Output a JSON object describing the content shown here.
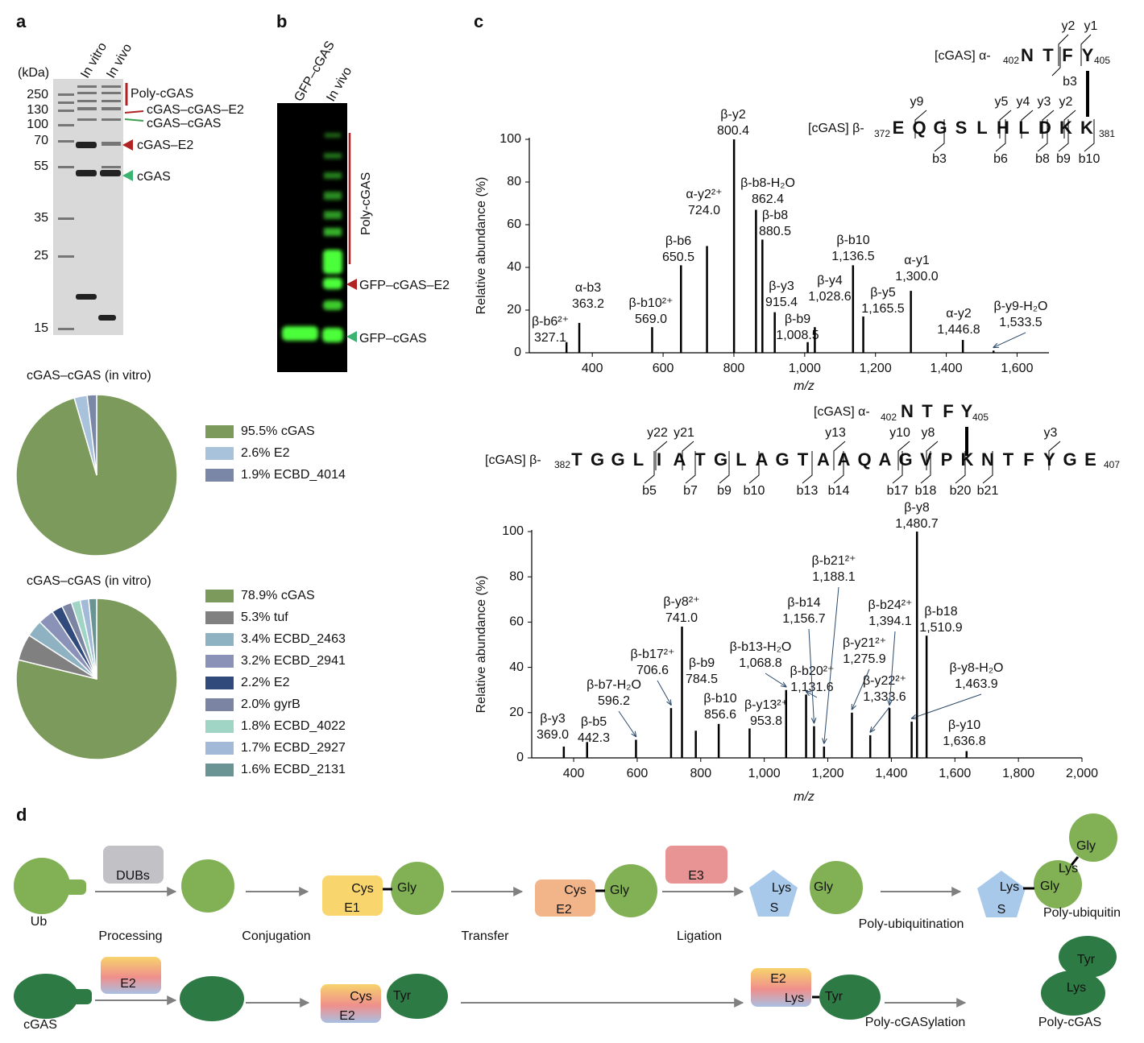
{
  "panel_labels": [
    "a",
    "b",
    "c",
    "d"
  ],
  "gel": {
    "unit": "(kDa)",
    "ladder": [
      250,
      130,
      100,
      70,
      55,
      35,
      25,
      15
    ],
    "lanes": [
      "In vitro",
      "In vivo"
    ],
    "annotations": [
      "Poly-cGAS",
      "cGAS–cGAS–E2",
      "cGAS–cGAS",
      "cGAS–E2",
      "cGAS"
    ]
  },
  "blot": {
    "lanes": [
      "GFP–cGAS",
      "In vivo"
    ],
    "annotations": [
      "Poly-cGAS",
      "GFP–cGAS–E2",
      "GFP–cGAS"
    ]
  },
  "chart_data": [
    {
      "type": "pie",
      "title": "cGAS–cGAS (in vitro)",
      "categories": [
        "cGAS",
        "E2",
        "ECBD_4014"
      ],
      "values": [
        95.5,
        2.6,
        1.9
      ],
      "value_labels": [
        "95.5%",
        "2.6%",
        "1.9%"
      ],
      "colors": [
        "#7b9a5b",
        "#a8c2dc",
        "#7a87a7"
      ]
    },
    {
      "type": "pie",
      "title": "cGAS–cGAS (in vitro)",
      "categories": [
        "cGAS",
        "tuf",
        "ECBD_2463",
        "ECBD_2941",
        "E2",
        "gyrB",
        "ECBD_4022",
        "ECBD_2927",
        "ECBD_2131"
      ],
      "values": [
        78.9,
        5.3,
        3.4,
        3.2,
        2.2,
        2.0,
        1.8,
        1.7,
        1.6
      ],
      "value_labels": [
        "78.9%",
        "5.3%",
        "3.4%",
        "3.2%",
        "2.2%",
        "2.0%",
        "1.8%",
        "1.7%",
        "1.6%"
      ],
      "colors": [
        "#7b9a5b",
        "#808080",
        "#8fb2c3",
        "#8a93b7",
        "#2f4a7b",
        "#7b85a3",
        "#a0d4c4",
        "#a2b9d7",
        "#6a9393"
      ]
    },
    {
      "type": "spectrum",
      "xlabel": "m/z",
      "ylabel": "Relative abundance (%)",
      "color": "#000000",
      "names": [
        "β-b6²⁺",
        "α-b3",
        "β-b6",
        "β-b10²⁺",
        "α-y2²⁺",
        "β-y2",
        "β-b8-H₂O",
        "β-b8",
        "β-y3",
        "β-b9",
        "β-y4",
        "β-b10",
        "β-y5",
        "α-y1",
        "α-y2",
        "β-y9-H₂O"
      ],
      "x": [
        327.1,
        363.2,
        650.5,
        569.0,
        724.0,
        800.4,
        862.4,
        880.5,
        915.4,
        1008.5,
        1028.6,
        1136.5,
        1165.5,
        1300.0,
        1446.8,
        1533.5
      ],
      "x_labels": [
        "327.1",
        "363.2",
        "650.5",
        "569.0",
        "724.0",
        "800.4",
        "862.4",
        "880.5",
        "915.4",
        "1,008.5",
        "1,028.6",
        "1,136.5",
        "1,165.5",
        "1,300.0",
        "1,446.8",
        "1,533.5"
      ],
      "values": [
        5,
        14,
        41,
        12,
        50,
        100,
        67,
        53,
        19,
        5,
        12,
        41,
        17,
        29,
        6,
        1
      ],
      "xlim": [
        222,
        1690
      ],
      "xticks": [
        400,
        600,
        800,
        {
          "value": 1000,
          "label": "1,000"
        },
        {
          "value": 1200,
          "label": "1,200"
        },
        {
          "value": 1400,
          "label": "1,400"
        },
        {
          "value": 1600,
          "label": "1,600"
        }
      ],
      "ylim": [
        0,
        100
      ],
      "yticks": [
        0,
        20,
        40,
        60,
        80,
        100
      ]
    },
    {
      "type": "spectrum",
      "xlabel": "m/z",
      "ylabel": "Relative abundance (%)",
      "color": "#000000",
      "names": [
        "β-y3",
        "β-b5",
        "β-b7-H₂O",
        "β-b17²⁺",
        "β-y8²⁺",
        "β-b9",
        "β-b10",
        "β-y13²⁺",
        "β-b13-H₂O",
        "β-b20²⁺",
        "β-b14",
        "β-b21²⁺",
        "β-y21²⁺",
        "β-y22²⁺",
        "β-b24²⁺",
        "β-y8-H₂O",
        "β-y8",
        "β-b18",
        "β-y10"
      ],
      "x": [
        369.0,
        442.3,
        596.2,
        706.6,
        741.0,
        784.5,
        856.6,
        953.8,
        1068.8,
        1131.6,
        1156.7,
        1188.1,
        1275.9,
        1333.6,
        1394.1,
        1463.9,
        1480.7,
        1510.9,
        1636.8
      ],
      "x_labels": [
        "369.0",
        "442.3",
        "596.2",
        "706.6",
        "741.0",
        "784.5",
        "856.6",
        "953.8",
        "1,068.8",
        "1,131.6",
        "1,156.7",
        "1,188.1",
        "1,275.9",
        "1,333.6",
        "1,394.1",
        "1,463.9",
        "1,480.7",
        "1,510.9",
        "1,636.8"
      ],
      "values": [
        5,
        7,
        8,
        22,
        58,
        12,
        15,
        13,
        30,
        28,
        14,
        5,
        20,
        10,
        22,
        16,
        100,
        54,
        3
      ],
      "xlim": [
        268,
        2000
      ],
      "xticks": [
        400,
        600,
        800,
        {
          "value": 1000,
          "label": "1,000"
        },
        {
          "value": 1200,
          "label": "1,200"
        },
        {
          "value": 1400,
          "label": "1,400"
        },
        {
          "value": 1600,
          "label": "1,600"
        },
        {
          "value": 1800,
          "label": "1,800"
        },
        {
          "value": 2000,
          "label": "2,000"
        }
      ],
      "ylim": [
        0,
        100
      ],
      "yticks": [
        0,
        20,
        40,
        60,
        80,
        100
      ]
    }
  ],
  "crosslinks": [
    {
      "alpha_prefix": "[cGAS] α-",
      "alpha_start": 402,
      "alpha_seq": "NTFY",
      "alpha_end": 405,
      "alpha_ions": [
        "y2",
        "y1",
        "b3"
      ],
      "beta_prefix": "[cGAS] β-",
      "beta_start": 372,
      "beta_seq": "EQGSLHLDKK",
      "beta_end": 381,
      "beta_top_ions": [
        "y9",
        "y5",
        "y4",
        "y3",
        "y2"
      ],
      "beta_bottom_ions": [
        "b3",
        "b6",
        "b8",
        "b9",
        "b10"
      ]
    },
    {
      "alpha_prefix": "[cGAS] α-",
      "alpha_start": 402,
      "alpha_seq": "NTFY",
      "alpha_end": 405,
      "alpha_ions": [],
      "beta_prefix": "[cGAS] β-",
      "beta_start": 382,
      "beta_seq": "TGGLIATGLAGTAAQAGVPKNTFYGE",
      "beta_end": 407,
      "beta_top_ions": [
        "y22",
        "y21",
        "y13",
        "y10",
        "y8",
        "y3"
      ],
      "beta_bottom_ions": [
        "b5",
        "b7",
        "b9",
        "b10",
        "b13",
        "b14",
        "b17",
        "b18",
        "b20",
        "b21"
      ]
    }
  ],
  "diagram": {
    "ubiquitin": [
      "DUBs",
      "Ub",
      "Processing",
      "Conjugation",
      "Cys",
      "E1",
      "Gly",
      "Transfer",
      "Cys",
      "E2",
      "Gly",
      "E3",
      "Ligation",
      "Lys",
      "S",
      "Gly",
      "Poly-ubiquitination",
      "Lys",
      "S",
      "Gly",
      "Lys",
      "Gly",
      "Poly-ubiquitin"
    ],
    "cgas": [
      "E2",
      "cGAS",
      "Cys",
      "E2",
      "Tyr",
      "E2",
      "Lys",
      "Tyr",
      "Poly-cGASylation",
      "Tyr",
      "Lys",
      "Poly-cGAS"
    ]
  }
}
